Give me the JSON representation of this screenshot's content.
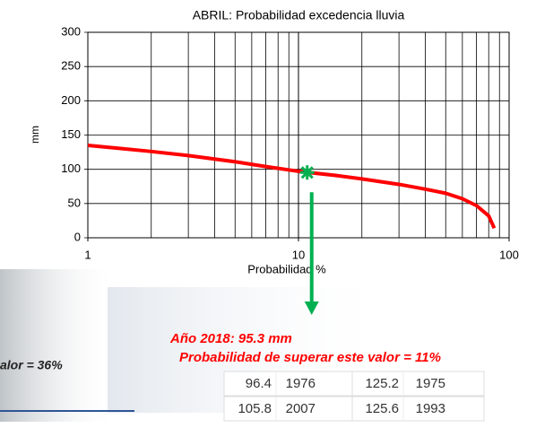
{
  "chart_data": {
    "type": "line",
    "title": "ABRIL: Probabilidad excedencia lluvia",
    "x_label": "Probabilidad %",
    "y_label": "mm",
    "xscale": "log",
    "xlim": [
      1,
      100
    ],
    "xticks": [
      1,
      10,
      100
    ],
    "xminor_ticks": [
      2,
      3,
      4,
      5,
      6,
      7,
      8,
      9,
      20,
      30,
      40,
      50,
      60,
      70,
      80,
      90
    ],
    "ylim": [
      0,
      300
    ],
    "yticks": [
      0,
      50,
      100,
      150,
      200,
      250,
      300
    ],
    "grid": true,
    "series": [
      {
        "color": "#ff0000",
        "x": [
          1,
          2,
          3,
          5,
          7,
          10,
          15,
          20,
          30,
          40,
          50,
          60,
          70,
          80,
          85
        ],
        "values": [
          135,
          126,
          120,
          111,
          104,
          97,
          91,
          86,
          78,
          71,
          65,
          57,
          47,
          32,
          14
        ]
      }
    ],
    "marker": {
      "x": 11,
      "y": 95.3,
      "color": "#00b050"
    }
  },
  "annotations": [
    "Año 2018: 95.3 mm",
    "Probabilidad de superar este valor = 11%",
    "alor = 36%"
  ],
  "table": {
    "rows": [
      [
        "96.4",
        "1976",
        "125.2",
        "1975"
      ],
      [
        "105.8",
        "2007",
        "125.6",
        "1993"
      ]
    ]
  }
}
